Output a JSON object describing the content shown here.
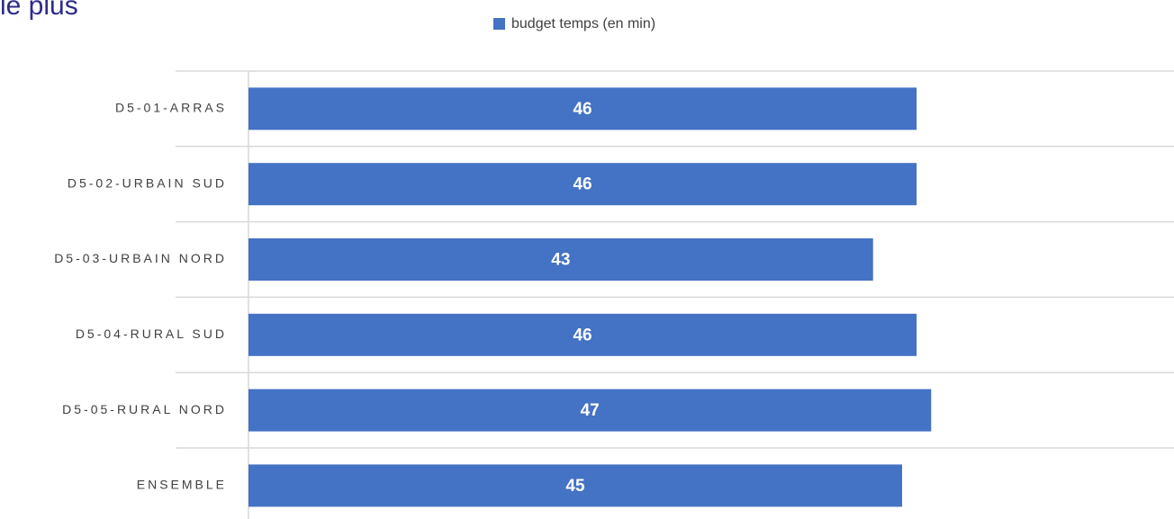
{
  "chart_data": {
    "type": "bar",
    "orientation": "horizontal",
    "title": "le plus",
    "categories": [
      "D5-01-ARRAS",
      "D5-02-URBAIN SUD",
      "D5-03-URBAIN NORD",
      "D5-04-RURAL SUD",
      "D5-05-RURAL NORD",
      "ENSEMBLE"
    ],
    "series": [
      {
        "name": "budget temps (en min)",
        "color": "#4472c4",
        "values": [
          46,
          46,
          43,
          46,
          47,
          45
        ]
      }
    ],
    "xlim": [
      0,
      60
    ],
    "legend": "top",
    "grid": true
  }
}
